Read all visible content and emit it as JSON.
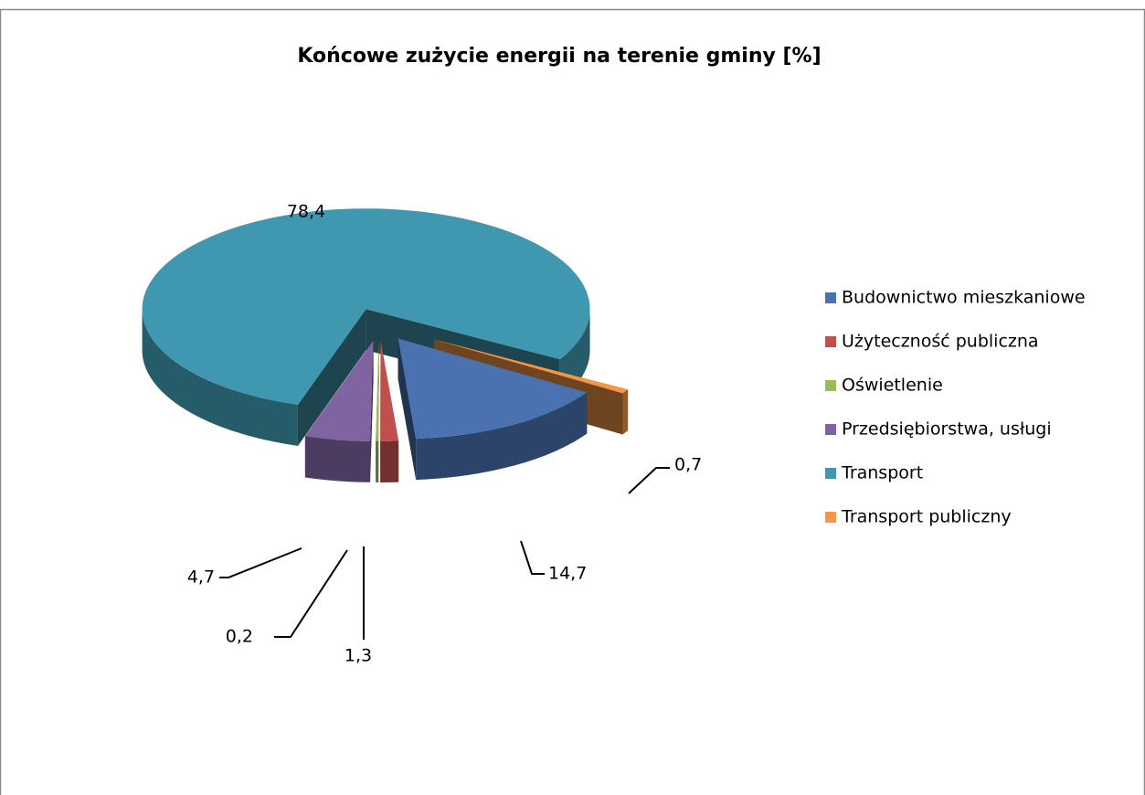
{
  "chart_data": {
    "type": "pie",
    "title": "Końcowe zużycie energii na terenie gminy [%]",
    "categories": [
      "Budownictwo mieszkaniowe",
      "Użyteczność publiczna",
      "Oświetlenie",
      "Przedsiębiorstwa, usługi",
      "Transport",
      "Transport publiczny"
    ],
    "values": [
      14.7,
      1.3,
      0.2,
      4.7,
      78.4,
      0.7
    ],
    "value_labels": [
      "14,7",
      "1,3",
      "0,2",
      "4,7",
      "78,4",
      "0,7"
    ],
    "colors": [
      "#4a72b0",
      "#c0504d",
      "#9bbb59",
      "#8064a2",
      "#4097b0",
      "#f79646"
    ],
    "legend": "right"
  }
}
